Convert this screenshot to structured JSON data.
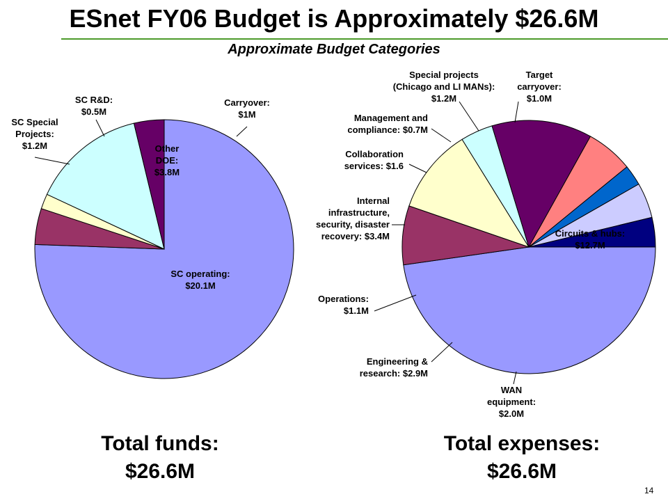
{
  "title": "ESnet FY06 Budget is Approximately $26.6M",
  "subtitle": "Approximate Budget Categories",
  "page_number": "14",
  "chart_data": [
    {
      "type": "pie",
      "categories": [
        "SC operating",
        "SC Special Projects",
        "SC R&D",
        "Other DOE",
        "Carryover"
      ],
      "values": [
        20.1,
        1.2,
        0.5,
        3.8,
        1.0
      ],
      "labels": [
        [
          "SC operating:",
          "$20.1M"
        ],
        [
          "SC Special",
          "Projects:",
          "$1.2M"
        ],
        [
          "SC R&D:",
          "$0.5M"
        ],
        [
          "Other",
          "DOE:",
          "$3.8M"
        ],
        [
          "Carryover:",
          "$1M"
        ]
      ],
      "colors": [
        "#9999ff",
        "#993366",
        "#ffffcc",
        "#ccffff",
        "#660066"
      ],
      "start_angle_deg": 90,
      "direction": "clockwise",
      "total": [
        "Total funds:",
        "$26.6M"
      ]
    },
    {
      "type": "pie",
      "categories": [
        "Circuits & hubs",
        "WAN equipment",
        "Engineering & research",
        "Operations",
        "Internal infrastructure, security, disaster recovery",
        "Collaboration services",
        "Management and compliance",
        "Special projects (Chicago and LI MANs)",
        "Target carryover"
      ],
      "values": [
        12.7,
        2.0,
        2.9,
        1.1,
        3.4,
        1.6,
        0.7,
        1.2,
        1.0
      ],
      "labels": [
        [
          "Circuits & hubs:",
          "$12.7M"
        ],
        [
          "WAN",
          "equipment:",
          "$2.0M"
        ],
        [
          "Engineering &",
          "research: $2.9M"
        ],
        [
          "Operations:",
          "$1.1M"
        ],
        [
          "Internal",
          "infrastructure,",
          "security, disaster",
          "recovery: $3.4M"
        ],
        [
          "Collaboration",
          "services: $1.6"
        ],
        [
          "Management and",
          "compliance: $0.7M"
        ],
        [
          "Special projects",
          "(Chicago and LI MANs):",
          "$1.2M"
        ],
        [
          "Target",
          "carryover:",
          "$1.0M"
        ]
      ],
      "colors": [
        "#9999ff",
        "#993366",
        "#ffffcc",
        "#ccffff",
        "#660066",
        "#ff8080",
        "#0066cc",
        "#ccccff",
        "#000080"
      ],
      "start_angle_deg": 0,
      "direction": "clockwise",
      "total": [
        "Total expenses:",
        "$26.6M"
      ]
    }
  ]
}
